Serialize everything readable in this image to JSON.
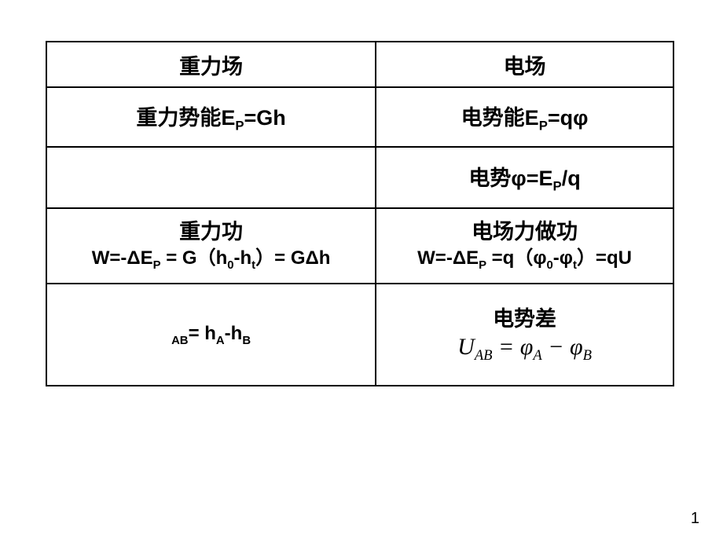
{
  "table": {
    "border_color": "#000000",
    "background": "#ffffff",
    "text_color": "#000000",
    "col_widths_pct": [
      50,
      50
    ],
    "header": {
      "left": "重力场",
      "right": "电场",
      "fontsize": 27,
      "bold": true
    },
    "rows": [
      {
        "left": {
          "main": "重力势能E",
          "sub": "P",
          "tail": "=Gh"
        },
        "right": {
          "main": "电势能E",
          "sub": "P",
          "tail": "=qφ"
        },
        "fontsize": 27,
        "bold": true
      },
      {
        "left": {
          "text": ""
        },
        "right": {
          "main": "电势φ=E",
          "sub": "P",
          "tail": "/q"
        },
        "fontsize": 27,
        "bold": true
      },
      {
        "left": {
          "line1": "重力功",
          "line2_parts": [
            "W=-ΔE",
            "P",
            " = G（h",
            "0",
            "-h",
            "t",
            "）= GΔh"
          ]
        },
        "right": {
          "line1": "电场力做功",
          "line2_parts": [
            "W=-ΔE",
            "P",
            " =q（φ",
            "0",
            "-φ",
            "t",
            "）=qU"
          ]
        },
        "fontsize_line1": 27,
        "fontsize_line2": 24,
        "bold": true
      },
      {
        "left": {
          "parts": [
            "",
            "AB",
            "= h",
            "A",
            "-h",
            "B"
          ]
        },
        "right": {
          "title": "电势差",
          "formula_parts": [
            "U",
            "AB",
            " = φ",
            "A",
            " − φ",
            "B"
          ]
        },
        "fontsize_title": 27,
        "formula_fontsize": 30,
        "bold": true
      }
    ]
  },
  "page_number": "1"
}
